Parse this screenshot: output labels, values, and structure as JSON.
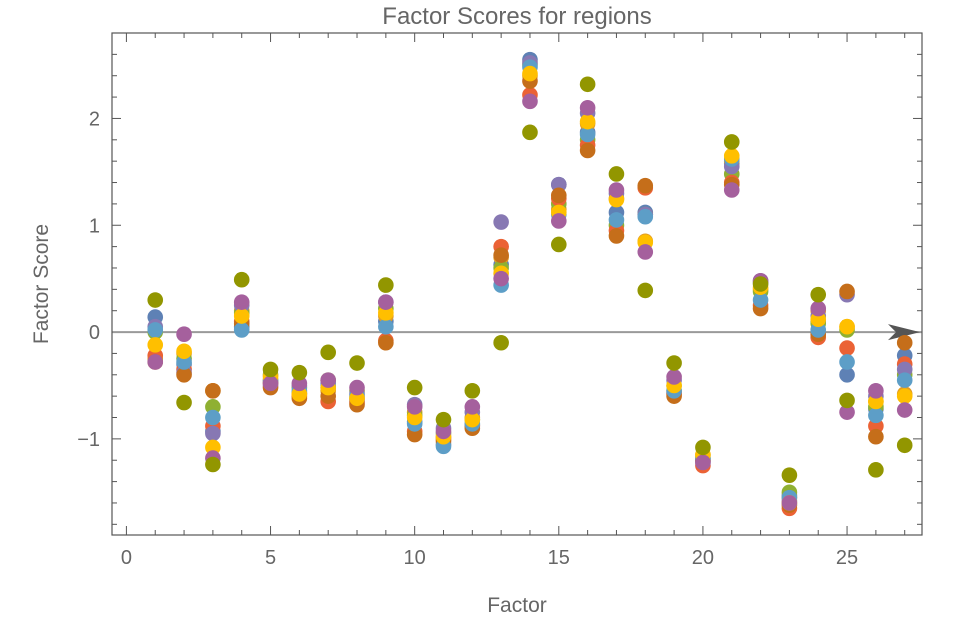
{
  "chart_data": {
    "type": "scatter",
    "title": "Factor Scores for regions",
    "xlabel": "Factor",
    "ylabel": "Factor Score",
    "xlim": [
      -0.5,
      27.6
    ],
    "ylim": [
      -1.9,
      2.8
    ],
    "x_ticks": [
      0,
      5,
      10,
      15,
      20,
      25
    ],
    "y_ticks": [
      -1,
      0,
      1,
      2
    ],
    "y_tick_labels": [
      "−1",
      "0",
      "1",
      "2"
    ],
    "grid": false,
    "legend": "none",
    "zero_line": true,
    "palette": [
      "#5e81b5",
      "#e19c24",
      "#8fb032",
      "#eb6235",
      "#8778b3",
      "#c56e1a",
      "#5d9ec7",
      "#ffbf00",
      "#a5609d",
      "#929600"
    ],
    "series": [
      {
        "values": [
          0.14,
          -0.3,
          -0.93,
          0.05,
          -0.47,
          -0.57,
          -0.52,
          -0.64,
          0.1,
          -0.84,
          -1.05,
          -0.87,
          0.63,
          2.55,
          1.38,
          1.87,
          1.12,
          1.12,
          -0.57,
          -1.2,
          1.58,
          0.46,
          -1.53,
          0.1,
          -0.4,
          -0.72,
          -0.22
        ]
      },
      {
        "values": [
          -0.25,
          -0.2,
          -0.55,
          0.2,
          -0.45,
          -0.58,
          -0.55,
          -0.62,
          0.15,
          -0.75,
          -0.98,
          -0.8,
          0.7,
          2.4,
          1.15,
          1.95,
          1.25,
          0.85,
          -0.55,
          -1.15,
          1.6,
          0.4,
          -1.55,
          0.2,
          0.05,
          -0.65,
          -0.58
        ]
      },
      {
        "values": [
          0.0,
          -0.25,
          -0.7,
          0.18,
          -0.4,
          -0.52,
          -0.45,
          -0.55,
          0.22,
          -0.78,
          -0.95,
          -0.82,
          0.6,
          2.5,
          1.2,
          1.8,
          1.0,
          1.1,
          -0.5,
          -1.18,
          1.48,
          0.38,
          -1.5,
          0.08,
          0.02,
          -0.7,
          -0.4
        ]
      },
      {
        "values": [
          -0.22,
          -0.35,
          -0.88,
          0.1,
          -0.48,
          -0.6,
          -0.65,
          -0.66,
          -0.08,
          -0.93,
          -1.0,
          -0.88,
          0.8,
          2.22,
          1.25,
          1.75,
          0.95,
          1.35,
          -0.58,
          -1.25,
          1.4,
          0.25,
          -1.65,
          -0.05,
          -0.15,
          -0.88,
          -0.3
        ]
      },
      {
        "values": [
          0.05,
          -0.38,
          -0.95,
          0.25,
          -0.5,
          -0.5,
          -0.48,
          -0.58,
          0.28,
          -0.68,
          -0.9,
          -0.75,
          1.03,
          2.52,
          1.38,
          2.05,
          1.3,
          1.1,
          -0.45,
          -1.22,
          1.55,
          0.48,
          -1.58,
          0.15,
          0.35,
          -0.6,
          -0.35
        ]
      },
      {
        "values": [
          -0.28,
          -0.4,
          -0.55,
          0.08,
          -0.52,
          -0.62,
          -0.6,
          -0.68,
          -0.1,
          -0.96,
          -1.02,
          -0.9,
          0.72,
          2.35,
          1.28,
          1.7,
          0.9,
          1.37,
          -0.6,
          -1.2,
          1.38,
          0.22,
          -1.62,
          -0.02,
          0.38,
          -0.98,
          -0.1
        ]
      },
      {
        "values": [
          0.02,
          -0.28,
          -0.8,
          0.02,
          -0.45,
          -0.55,
          -0.5,
          -0.6,
          0.05,
          -0.86,
          -1.07,
          -0.86,
          0.44,
          2.48,
          1.1,
          1.85,
          1.05,
          1.08,
          -0.55,
          -1.18,
          1.62,
          0.3,
          -1.55,
          0.02,
          -0.28,
          -0.78,
          -0.45
        ]
      },
      {
        "values": [
          -0.12,
          -0.18,
          -1.08,
          0.15,
          -0.42,
          -0.58,
          -0.52,
          -0.62,
          0.18,
          -0.8,
          -0.98,
          -0.82,
          0.55,
          2.42,
          1.12,
          1.97,
          1.24,
          0.84,
          -0.5,
          -1.15,
          1.65,
          0.42,
          -1.6,
          0.12,
          0.05,
          -0.65,
          -0.6
        ]
      },
      {
        "values": [
          -0.28,
          -0.02,
          -1.18,
          0.28,
          -0.48,
          -0.48,
          -0.45,
          -0.52,
          0.28,
          -0.7,
          -0.93,
          -0.7,
          0.5,
          2.16,
          1.04,
          2.1,
          1.33,
          0.75,
          -0.42,
          -1.22,
          1.33,
          0.48,
          -1.6,
          0.22,
          -0.75,
          -0.55,
          -0.73
        ]
      },
      {
        "values": [
          0.3,
          -0.66,
          -1.24,
          0.49,
          -0.35,
          -0.38,
          -0.19,
          -0.29,
          0.44,
          -0.52,
          -0.82,
          -0.55,
          -0.1,
          1.87,
          0.82,
          2.32,
          1.48,
          0.39,
          -0.29,
          -1.08,
          1.78,
          0.45,
          -1.34,
          0.35,
          -0.64,
          -1.29,
          -1.06
        ]
      }
    ]
  }
}
